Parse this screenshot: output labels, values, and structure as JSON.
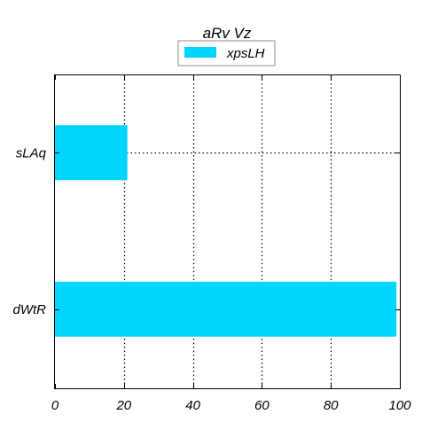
{
  "chart_data": {
    "type": "bar",
    "orientation": "horizontal",
    "title": "aRv Vz",
    "categories": [
      "sLAq",
      "dWtR"
    ],
    "series": [
      {
        "name": "xpsLH",
        "values": [
          21,
          99
        ],
        "color": "#00d5ff"
      }
    ],
    "xlabel": "",
    "ylabel": "",
    "xlim": [
      0,
      100
    ],
    "xticks": [
      0,
      20,
      40,
      60,
      80,
      100
    ],
    "grid": true,
    "legend_position": "top-center"
  }
}
